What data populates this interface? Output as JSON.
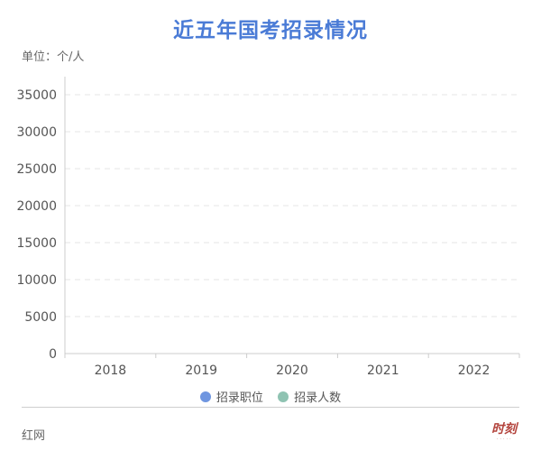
{
  "title": "近五年国考招录情况",
  "unit_label": "单位：个/人",
  "source": "红网",
  "logo": {
    "text": "时刻"
  },
  "colors": {
    "title": "#4a7bd6",
    "series_positions": "#6f96e0",
    "series_people": "#8fc3b2"
  },
  "chart_data": {
    "type": "bar",
    "categories": [
      "2018",
      "2019",
      "2020",
      "2021",
      "2022"
    ],
    "series": [
      {
        "name": "招录职位",
        "values": [
          null,
          null,
          null,
          null,
          null
        ]
      },
      {
        "name": "招录人数",
        "values": [
          null,
          null,
          null,
          null,
          null
        ]
      }
    ],
    "yticks": [
      "0",
      "5000",
      "10000",
      "15000",
      "20000",
      "25000",
      "30000",
      "35000"
    ],
    "ylim": [
      0,
      35000
    ],
    "grid": true,
    "legend_position": "bottom"
  }
}
